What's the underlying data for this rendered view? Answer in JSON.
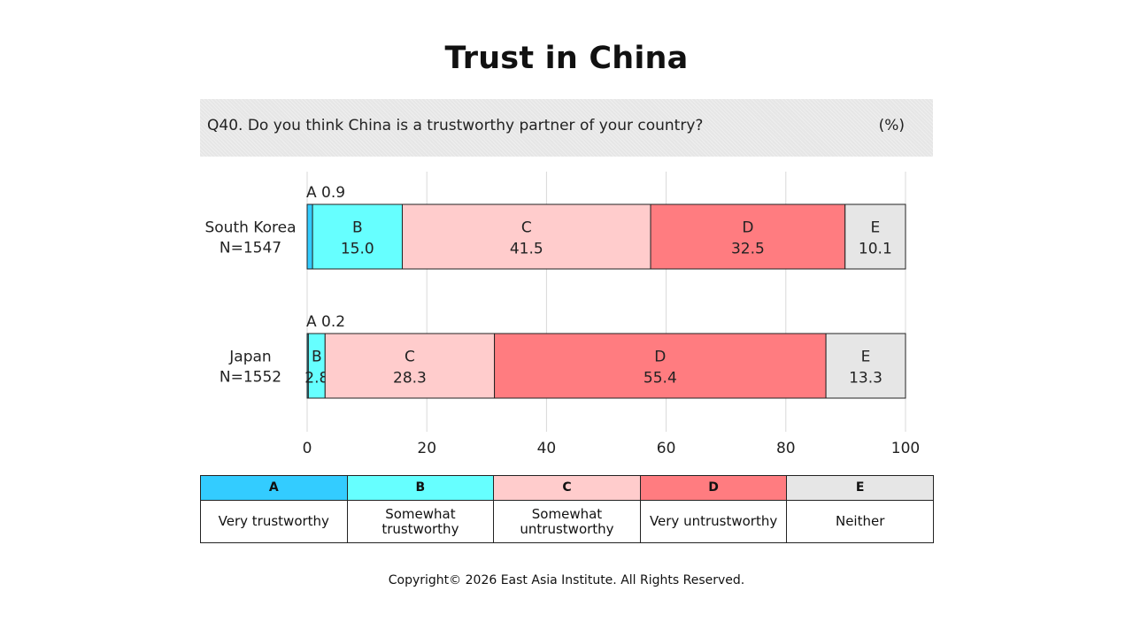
{
  "title": "Trust in China",
  "question": "Q40. Do you think China is a trustworthy partner of your country?",
  "unit": "(%)",
  "colors": {
    "A": "#33ccff",
    "B": "#66ffff",
    "C": "#ffcccc",
    "D": "#ff7c80",
    "E": "#e6e6e6"
  },
  "legend": [
    {
      "code": "A",
      "label": "Very trustworthy"
    },
    {
      "code": "B",
      "label": "Somewhat trustworthy"
    },
    {
      "code": "C",
      "label": "Somewhat untrustworthy"
    },
    {
      "code": "D",
      "label": "Very untrustworthy"
    },
    {
      "code": "E",
      "label": "Neither"
    }
  ],
  "chart_data": {
    "type": "bar",
    "orientation": "horizontal",
    "stacked": true,
    "categories": [
      "South Korea\nN=1547",
      "Japan\nN=1552"
    ],
    "segment_codes": [
      "A",
      "B",
      "C",
      "D",
      "E"
    ],
    "series": [
      {
        "code": "A",
        "values": [
          0.9,
          0.2
        ]
      },
      {
        "code": "B",
        "values": [
          15.0,
          2.8
        ]
      },
      {
        "code": "C",
        "values": [
          41.5,
          28.3
        ]
      },
      {
        "code": "D",
        "values": [
          32.5,
          55.4
        ]
      },
      {
        "code": "E",
        "values": [
          10.1,
          13.3
        ]
      }
    ],
    "xlim": [
      0,
      100
    ],
    "xticks": [
      0,
      20,
      40,
      60,
      80,
      100
    ],
    "grid": true
  },
  "footer": "Copyright© 2026 East Asia Institute. All Rights Reserved."
}
